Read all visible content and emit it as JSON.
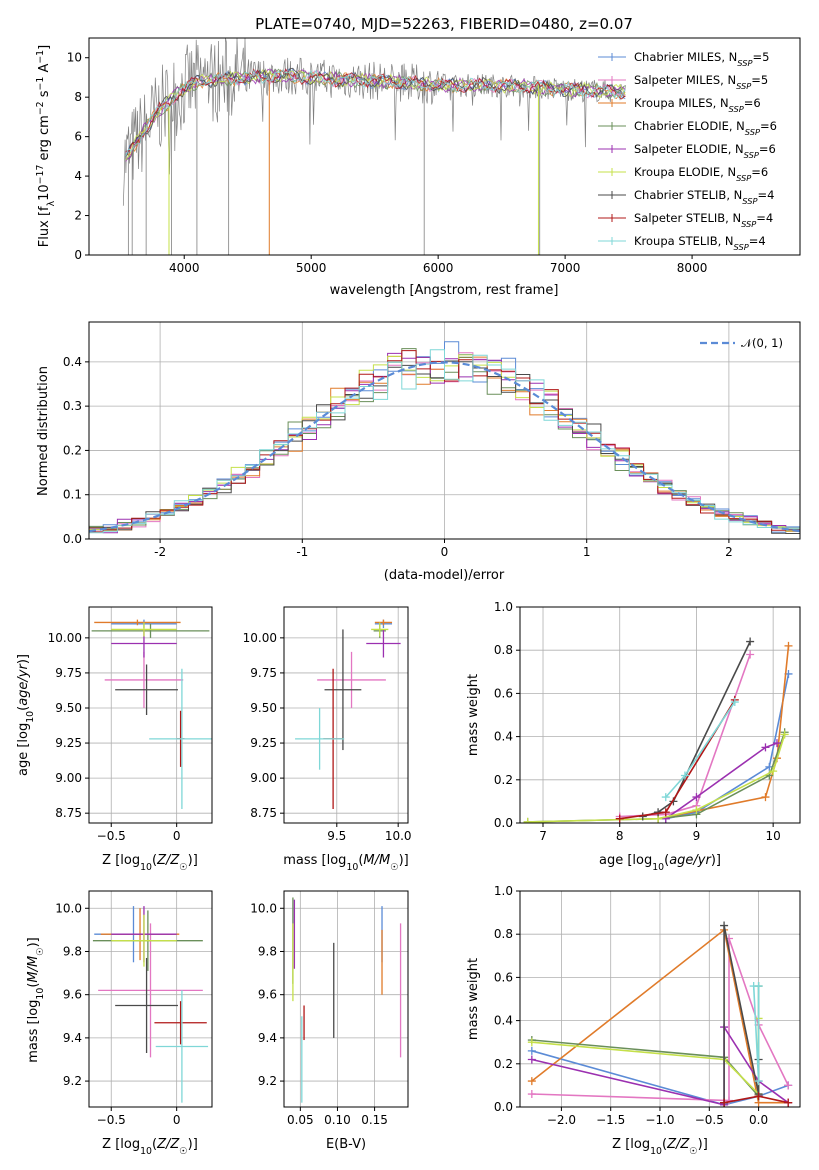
{
  "figure": {
    "title": "PLATE=0740, MJD=52263, FIBERID=0480, z=0.07"
  },
  "colors": {
    "chabrier_miles": "#5b8bd6",
    "salpeter_miles": "#e377c2",
    "kroupa_miles": "#e07b2a",
    "chabrier_elodie": "#6a8f5a",
    "salpeter_elodie": "#9b30b0",
    "kroupa_elodie": "#c5e04a",
    "chabrier_stelib": "#4a4a4a",
    "salpeter_stelib": "#b01818",
    "kroupa_stelib": "#7fd7d7",
    "raw_spectrum": "#808080",
    "normal_curve": "#5b8bd6"
  },
  "chart_data": [
    {
      "type": "line",
      "panel": "spectrum",
      "xlabel": "wavelength [Angstrom, rest frame]",
      "ylabel": "Flux [f_λ10^-17 erg cm^-2 s^-1 A^-1]",
      "xlim": [
        3250,
        8850
      ],
      "ylim": [
        0,
        11
      ],
      "xticks": [
        4000,
        5000,
        6000,
        7000,
        8000
      ],
      "yticks": [
        0,
        2,
        4,
        6,
        8,
        10
      ],
      "grid": false,
      "legend_position": "top-right",
      "legend": [
        "Chabrier MILES, N_SSP=5",
        "Salpeter MILES, N_SSP=5",
        "Kroupa MILES, N_SSP=6",
        "Chabrier ELODIE, N_SSP=6",
        "Salpeter ELODIE, N_SSP=6",
        "Kroupa ELODIE, N_SSP=6",
        "Chabrier STELIB, N_SSP=4",
        "Salpeter STELIB, N_SSP=4",
        "Kroupa STELIB, N_SSP=4"
      ],
      "spectrum_shape": {
        "x": [
          3550,
          3650,
          3800,
          3950,
          4100,
          4300,
          4500,
          4800,
          5200,
          5600,
          6000,
          6500,
          7000,
          7400
        ],
        "y": [
          5.0,
          6.0,
          7.3,
          8.2,
          8.8,
          8.9,
          9.0,
          9.1,
          8.9,
          8.8,
          8.6,
          8.6,
          8.4,
          8.3
        ]
      }
    },
    {
      "type": "step",
      "panel": "residual-histogram",
      "xlabel": "(data-model)/error",
      "ylabel": "Normed distribution",
      "xlim": [
        -2.5,
        2.5
      ],
      "ylim": [
        0,
        0.49
      ],
      "xticks": [
        -2,
        -1,
        0,
        1,
        2
      ],
      "yticks": [
        0.0,
        0.1,
        0.2,
        0.3,
        0.4
      ],
      "grid": true,
      "legend_position": "top-right",
      "legend": [
        "𝒩(0, 1)"
      ],
      "bin_width": 0.1
    },
    {
      "type": "errorbar",
      "panel": "age-vs-metallicity",
      "xlabel": "Z [log10(Z/Z☉)]",
      "ylabel": "age [log10(age/yr)]",
      "xlim": [
        -0.67,
        0.27
      ],
      "ylim": [
        8.68,
        10.22
      ],
      "xticks": [
        -0.5,
        0.0
      ],
      "yticks": [
        8.75,
        9.0,
        9.25,
        9.5,
        9.75,
        10.0
      ],
      "grid": true,
      "points": [
        {
          "model": "chabrier_miles",
          "x": -0.25,
          "y": 10.1,
          "xerr": 0.25,
          "yerr": 0.03
        },
        {
          "model": "kroupa_miles",
          "x": -0.3,
          "y": 10.11,
          "xerr": 0.33,
          "yerr": 0.02
        },
        {
          "model": "salpeter_miles",
          "x": -0.25,
          "y": 9.7,
          "xerr": 0.3,
          "yerr": 0.2
        },
        {
          "model": "chabrier_elodie",
          "x": -0.2,
          "y": 10.05,
          "xerr": 0.45,
          "yerr": 0.05
        },
        {
          "model": "salpeter_elodie",
          "x": -0.25,
          "y": 9.96,
          "xerr": 0.25,
          "yerr": 0.1
        },
        {
          "model": "kroupa_elodie",
          "x": -0.25,
          "y": 10.06,
          "xerr": 0.25,
          "yerr": 0.05
        },
        {
          "model": "chabrier_stelib",
          "x": -0.23,
          "y": 9.63,
          "xerr": 0.24,
          "yerr": 0.18
        },
        {
          "model": "salpeter_stelib",
          "x": 0.03,
          "y": 9.28,
          "xerr": 0.03,
          "yerr": 0.2
        },
        {
          "model": "kroupa_stelib",
          "x": 0.04,
          "y": 9.28,
          "xerr": 0.25,
          "yerr": 0.5
        }
      ]
    },
    {
      "type": "errorbar",
      "panel": "age-vs-mass",
      "xlabel": "mass [log10(M/M☉)]",
      "ylabel": "",
      "xlim": [
        9.07,
        10.08
      ],
      "ylim": [
        8.68,
        10.22
      ],
      "xticks": [
        9.0,
        9.5,
        10.0
      ],
      "yticks": [
        8.75,
        9.0,
        9.25,
        9.5,
        9.75,
        10.0
      ],
      "grid": true,
      "points": [
        {
          "model": "chabrier_miles",
          "x": 9.88,
          "y": 10.1,
          "xerr": 0.07,
          "yerr": 0.03
        },
        {
          "model": "kroupa_miles",
          "x": 9.88,
          "y": 10.11,
          "xerr": 0.07,
          "yerr": 0.02
        },
        {
          "model": "salpeter_miles",
          "x": 9.62,
          "y": 9.7,
          "xerr": 0.28,
          "yerr": 0.2
        },
        {
          "model": "chabrier_elodie",
          "x": 9.85,
          "y": 10.05,
          "xerr": 0.05,
          "yerr": 0.05
        },
        {
          "model": "salpeter_elodie",
          "x": 9.88,
          "y": 9.96,
          "xerr": 0.14,
          "yerr": 0.1
        },
        {
          "model": "kroupa_elodie",
          "x": 9.85,
          "y": 10.06,
          "xerr": 0.07,
          "yerr": 0.05
        },
        {
          "model": "chabrier_stelib",
          "x": 9.55,
          "y": 9.63,
          "xerr": 0.15,
          "yerr": 0.43
        },
        {
          "model": "salpeter_stelib",
          "x": 9.47,
          "y": 9.28,
          "xerr": 0.08,
          "yerr": 0.5
        },
        {
          "model": "kroupa_stelib",
          "x": 9.36,
          "y": 9.28,
          "xerr": 0.2,
          "yerr": 0.22
        }
      ]
    },
    {
      "type": "line",
      "panel": "mass-weight-vs-age",
      "xlabel": "age [log10(age/yr)]",
      "ylabel": "mass weight",
      "xlim": [
        6.7,
        10.35
      ],
      "ylim": [
        0.0,
        1.0
      ],
      "xticks": [
        7,
        8,
        9,
        10
      ],
      "yticks": [
        0.0,
        0.2,
        0.4,
        0.6,
        0.8,
        1.0
      ],
      "grid": true,
      "series": [
        {
          "model": "chabrier_miles",
          "x": [
            8.6,
            9.0,
            9.95,
            10.2
          ],
          "y": [
            0.02,
            0.05,
            0.26,
            0.69
          ]
        },
        {
          "model": "salpeter_miles",
          "x": [
            8.0,
            8.6,
            9.0,
            9.7
          ],
          "y": [
            0.03,
            0.04,
            0.08,
            0.78
          ]
        },
        {
          "model": "kroupa_miles",
          "x": [
            8.5,
            9.9,
            10.05,
            10.2
          ],
          "y": [
            0.02,
            0.12,
            0.3,
            0.82
          ]
        },
        {
          "model": "chabrier_elodie",
          "x": [
            6.8,
            8.5,
            9.0,
            9.95,
            10.15
          ],
          "y": [
            0.005,
            0.02,
            0.04,
            0.22,
            0.42
          ]
        },
        {
          "model": "salpeter_elodie",
          "x": [
            8.6,
            9.0,
            9.9,
            10.05
          ],
          "y": [
            0.02,
            0.12,
            0.35,
            0.37
          ]
        },
        {
          "model": "kroupa_elodie",
          "x": [
            6.8,
            8.5,
            9.0,
            10.0,
            10.15
          ],
          "y": [
            0.005,
            0.02,
            0.06,
            0.24,
            0.41
          ]
        },
        {
          "model": "chabrier_stelib",
          "x": [
            8.3,
            8.5,
            8.7,
            9.7
          ],
          "y": [
            0.03,
            0.05,
            0.1,
            0.84
          ]
        },
        {
          "model": "salpeter_stelib",
          "x": [
            8.0,
            8.6,
            9.5
          ],
          "y": [
            0.02,
            0.05,
            0.57
          ]
        },
        {
          "model": "kroupa_stelib",
          "x": [
            8.6,
            8.85,
            9.5
          ],
          "y": [
            0.12,
            0.22,
            0.56
          ]
        }
      ]
    },
    {
      "type": "errorbar",
      "panel": "mass-vs-metallicity",
      "xlabel": "Z [log10(Z/Z☉)]",
      "ylabel": "mass [log10(M/M☉)]",
      "xlim": [
        -0.67,
        0.27
      ],
      "ylim": [
        9.08,
        10.08
      ],
      "xticks": [
        -0.5,
        0.0
      ],
      "yticks": [
        9.2,
        9.4,
        9.6,
        9.8,
        10.0
      ],
      "grid": true,
      "points": [
        {
          "model": "chabrier_miles",
          "x": -0.33,
          "y": 9.88,
          "xerr": 0.3,
          "yerr": 0.13
        },
        {
          "model": "kroupa_miles",
          "x": -0.28,
          "y": 9.88,
          "xerr": 0.3,
          "yerr": 0.12
        },
        {
          "model": "salpeter_miles",
          "x": -0.2,
          "y": 9.62,
          "xerr": 0.4,
          "yerr": 0.31
        },
        {
          "model": "chabrier_elodie",
          "x": -0.22,
          "y": 9.85,
          "xerr": 0.42,
          "yerr": 0.14
        },
        {
          "model": "salpeter_elodie",
          "x": -0.25,
          "y": 9.88,
          "xerr": 0.25,
          "yerr": 0.13
        },
        {
          "model": "kroupa_elodie",
          "x": -0.25,
          "y": 9.85,
          "xerr": 0.25,
          "yerr": 0.12
        },
        {
          "model": "chabrier_stelib",
          "x": -0.23,
          "y": 9.55,
          "xerr": 0.24,
          "yerr": 0.22
        },
        {
          "model": "salpeter_stelib",
          "x": 0.03,
          "y": 9.47,
          "xerr": 0.2,
          "yerr": 0.1
        },
        {
          "model": "kroupa_stelib",
          "x": 0.04,
          "y": 9.36,
          "xerr": 0.2,
          "yerr": 0.26
        }
      ]
    },
    {
      "type": "errorbar",
      "panel": "mass-vs-extinction",
      "xlabel": "E(B-V)",
      "ylabel": "",
      "xlim": [
        0.028,
        0.195
      ],
      "ylim": [
        9.08,
        10.08
      ],
      "xticks": [
        0.05,
        0.1,
        0.15
      ],
      "yticks": [
        9.2,
        9.4,
        9.6,
        9.8,
        10.0
      ],
      "grid": true,
      "points": [
        {
          "model": "chabrier_miles",
          "x": 0.16,
          "y": 9.88,
          "yerr": 0.13
        },
        {
          "model": "kroupa_miles",
          "x": 0.16,
          "y": 9.75,
          "yerr": 0.15
        },
        {
          "model": "salpeter_miles",
          "x": 0.185,
          "y": 9.62,
          "yerr": 0.31
        },
        {
          "model": "chabrier_elodie",
          "x": 0.04,
          "y": 9.85,
          "yerr": 0.2
        },
        {
          "model": "salpeter_elodie",
          "x": 0.042,
          "y": 9.88,
          "yerr": 0.16
        },
        {
          "model": "kroupa_elodie",
          "x": 0.04,
          "y": 9.75,
          "yerr": 0.18
        },
        {
          "model": "chabrier_stelib",
          "x": 0.095,
          "y": 9.62,
          "yerr": 0.22
        },
        {
          "model": "salpeter_stelib",
          "x": 0.055,
          "y": 9.47,
          "yerr": 0.08
        },
        {
          "model": "kroupa_stelib",
          "x": 0.052,
          "y": 9.3,
          "yerr": 0.2
        }
      ]
    },
    {
      "type": "line",
      "panel": "mass-weight-vs-metallicity",
      "xlabel": "Z [log10(Z/Z☉)]",
      "ylabel": "mass weight",
      "xlim": [
        -2.42,
        0.42
      ],
      "ylim": [
        0.0,
        1.0
      ],
      "xticks": [
        -2.0,
        -1.5,
        -1.0,
        -0.5,
        0.0
      ],
      "yticks": [
        0.0,
        0.2,
        0.4,
        0.6,
        0.8,
        1.0
      ],
      "grid": true,
      "series": [
        {
          "model": "chabrier_miles",
          "x": [
            -2.3,
            -0.35,
            0.0,
            0.3
          ],
          "y": [
            0.26,
            0.01,
            0.05,
            0.1
          ]
        },
        {
          "model": "salpeter_miles",
          "x": [
            -2.3,
            -0.3,
            -0.3,
            0.0,
            0.3
          ],
          "y": [
            0.06,
            0.03,
            0.78,
            0.38,
            0.1
          ]
        },
        {
          "model": "kroupa_miles",
          "x": [
            -2.3,
            -0.35,
            0.0,
            0.3
          ],
          "y": [
            0.12,
            0.82,
            0.02,
            0.02
          ]
        },
        {
          "model": "chabrier_elodie",
          "x": [
            -2.3,
            -0.35,
            0.0,
            0.0
          ],
          "y": [
            0.31,
            0.23,
            0.05,
            0.56
          ]
        },
        {
          "model": "salpeter_elodie",
          "x": [
            -2.3,
            -0.35,
            -0.35,
            0.0,
            0.3
          ],
          "y": [
            0.22,
            0.01,
            0.37,
            0.12,
            0.02
          ]
        },
        {
          "model": "kroupa_elodie",
          "x": [
            -2.3,
            -0.35,
            0.0,
            0.0
          ],
          "y": [
            0.3,
            0.22,
            0.06,
            0.41
          ]
        },
        {
          "model": "chabrier_stelib",
          "x": [
            -0.35,
            -0.35,
            0.0,
            0.0
          ],
          "y": [
            0.02,
            0.84,
            0.06,
            0.22
          ]
        },
        {
          "model": "salpeter_stelib",
          "x": [
            -0.35,
            0.0,
            0.3
          ],
          "y": [
            0.02,
            0.05,
            0.02
          ]
        },
        {
          "model": "kroupa_stelib",
          "x": [
            -0.05,
            0.0,
            0.0
          ],
          "y": [
            0.56,
            0.12,
            0.56
          ]
        }
      ]
    }
  ]
}
